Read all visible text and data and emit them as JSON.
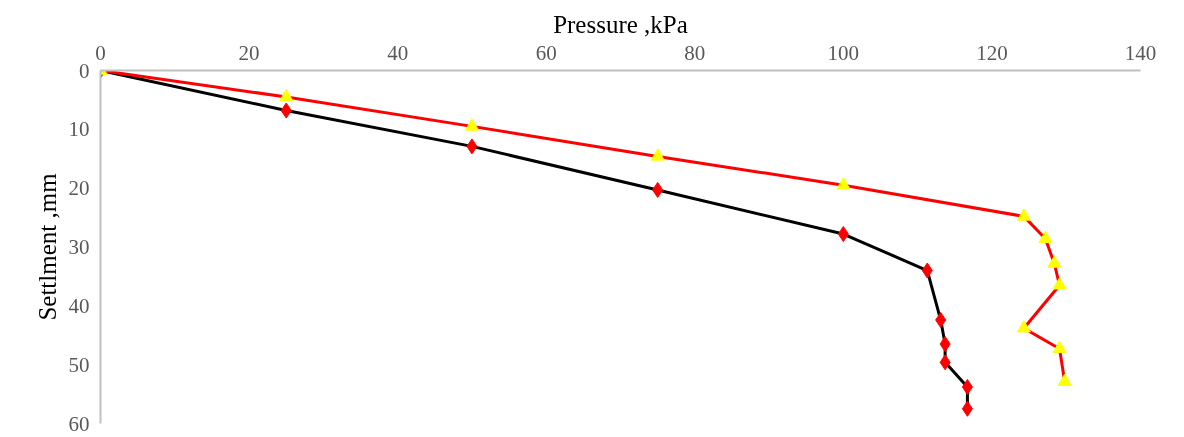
{
  "chart_data": {
    "type": "line",
    "xlabel": "Pressure ,kPa",
    "ylabel": "Settlment ,mm",
    "xlim": [
      0,
      140
    ],
    "xticks": [
      0,
      20,
      40,
      60,
      80,
      100,
      120,
      140
    ],
    "ylim": [
      60,
      0
    ],
    "yticks": [
      0,
      10,
      20,
      30,
      40,
      50,
      60
    ],
    "grid": false,
    "series": [
      {
        "color": "#000000",
        "marker": "diamond",
        "x": [
          0,
          25,
          50,
          75,
          100,
          111.3,
          113.1,
          113.7,
          113.7,
          116.7,
          116.7
        ],
        "values": [
          0,
          6.8,
          12.9,
          20.3,
          27.8,
          34.0,
          42.4,
          46.5,
          49.6,
          53.8,
          57.5
        ],
        "colors": [
          "#ff0000",
          "#ff0000",
          "#ff0000",
          "#ff0000",
          "#ff0000",
          "#ff0000",
          "#ff0000",
          "#ff0000",
          "#ff0000",
          "#ff0000",
          "#ff0000"
        ]
      },
      {
        "color": "#ff0000",
        "marker": "triangle",
        "x": [
          0,
          25,
          50,
          75,
          100,
          124.3,
          127.2,
          128.4,
          129.1,
          124.3,
          129.1,
          129.8
        ],
        "values": [
          0,
          4.5,
          9.5,
          14.6,
          19.5,
          24.8,
          28.6,
          32.8,
          36.5,
          43.8,
          47.3,
          52.9
        ],
        "colors": [
          "#ffff00",
          "#ffff00",
          "#ffff00",
          "#ffff00",
          "#ffff00",
          "#ffff00",
          "#ffff00",
          "#ffff00",
          "#ffff00",
          "#ffff00",
          "#ffff00",
          "#ffff00"
        ]
      }
    ]
  }
}
